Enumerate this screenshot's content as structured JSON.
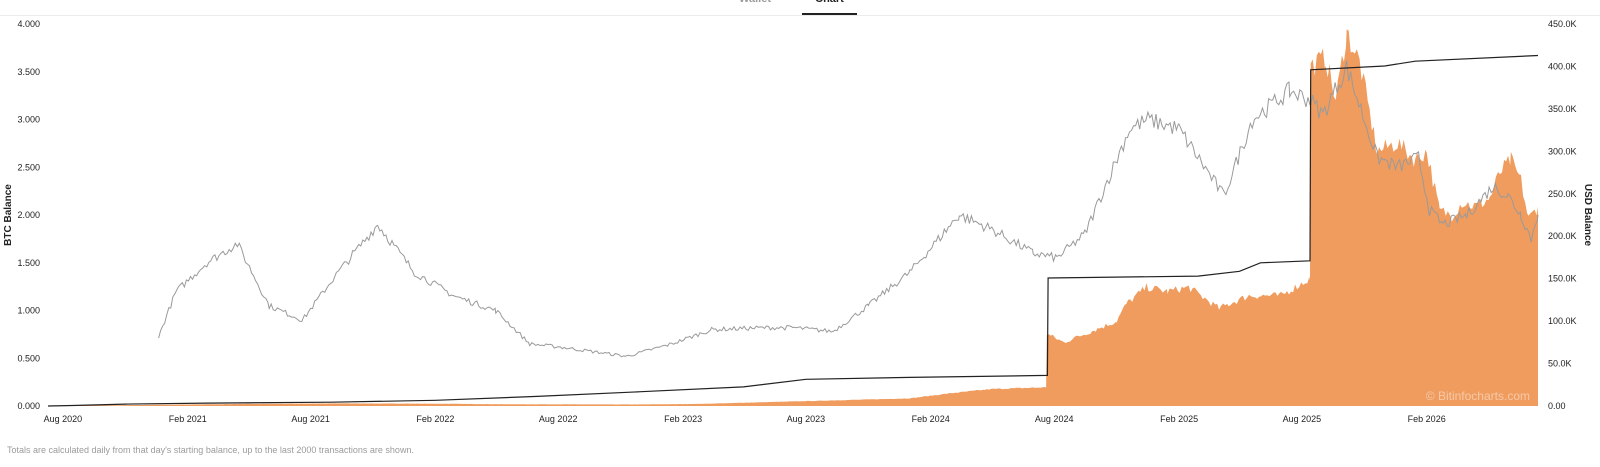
{
  "tabs": [
    {
      "label": "Wallet",
      "active": false
    },
    {
      "label": "Chart",
      "active": true
    }
  ],
  "footnote": "Totals are calculated daily from that day's starting balance, up to the last 2000 transactions are shown.",
  "watermark": "© Bitinfocharts.com",
  "colors": {
    "usd_area": "#ef9c5e",
    "btc_line": "#222222",
    "price_line": "#9a9a9a"
  },
  "chart_data": {
    "type": "area",
    "title": "",
    "x_axis": {
      "type": "date",
      "range": [
        "2020-07-10",
        "2026-07-15"
      ],
      "tick_labels": [
        "Aug 2020",
        "Feb 2021",
        "Aug 2021",
        "Feb 2022",
        "Aug 2022",
        "Feb 2023",
        "Aug 2023",
        "Feb 2024",
        "Aug 2024",
        "Feb 2025",
        "Aug 2025",
        "Feb 2026"
      ],
      "tick_dates": [
        "2020-08-01",
        "2021-02-01",
        "2021-08-01",
        "2022-02-01",
        "2022-08-01",
        "2023-02-01",
        "2023-08-01",
        "2024-02-01",
        "2024-08-01",
        "2025-02-01",
        "2025-08-01",
        "2026-02-01"
      ]
    },
    "y_left": {
      "label": "BTC Balance",
      "range": [
        0,
        4
      ],
      "ticks": [
        0,
        0.5,
        1,
        1.5,
        2,
        2.5,
        3,
        3.5,
        4
      ],
      "tick_labels": [
        "0.000",
        "0.500",
        "1.000",
        "1.500",
        "2.000",
        "2.500",
        "3.000",
        "3.500",
        "4.000"
      ]
    },
    "y_right": {
      "label": "USD Balance",
      "range": [
        0,
        450000
      ],
      "ticks": [
        0,
        50000,
        100000,
        150000,
        200000,
        250000,
        300000,
        350000,
        400000,
        450000
      ],
      "tick_labels": [
        "0.00",
        "50.0K",
        "100.0K",
        "150.0K",
        "200.0K",
        "250.0K",
        "300.0K",
        "350.0K",
        "400.0K",
        "450.0K"
      ]
    },
    "grid": false,
    "legend": "none",
    "series": [
      {
        "kind": "area",
        "axis": "right",
        "color": "#ef9c5e",
        "x": [
          "2020-07-10",
          "2021-01-01",
          "2021-05-01",
          "2021-09-01",
          "2022-01-01",
          "2022-06-01",
          "2022-12-01",
          "2023-03-01",
          "2023-06-01",
          "2023-10-01",
          "2024-01-01",
          "2024-03-01",
          "2024-05-01",
          "2024-07-20",
          "2024-07-21",
          "2024-08-15",
          "2024-10-01",
          "2024-11-01",
          "2024-11-15",
          "2024-12-15",
          "2025-01-15",
          "2025-02-15",
          "2025-04-01",
          "2025-04-15",
          "2025-05-15",
          "2025-07-01",
          "2025-08-13",
          "2025-08-14",
          "2025-09-05",
          "2025-09-20",
          "2025-10-06",
          "2025-10-25",
          "2025-11-20",
          "2025-12-20",
          "2026-01-15",
          "2026-02-01",
          "2026-02-20",
          "2026-03-10",
          "2026-03-25",
          "2026-04-15",
          "2026-05-05",
          "2026-05-20",
          "2026-06-05",
          "2026-06-20",
          "2026-07-01",
          "2026-07-15"
        ],
        "y": [
          200,
          1500,
          2500,
          3000,
          2800,
          2000,
          1800,
          2500,
          4500,
          7000,
          9000,
          15000,
          20000,
          22000,
          85000,
          75000,
          90000,
          100000,
          120000,
          140000,
          135000,
          140000,
          115000,
          120000,
          130000,
          130000,
          150000,
          400000,
          410000,
          360000,
          440000,
          405000,
          300000,
          310000,
          290000,
          300000,
          230000,
          225000,
          240000,
          235000,
          245000,
          275000,
          290000,
          265000,
          220000,
          235000
        ]
      },
      {
        "kind": "line",
        "axis": "left",
        "color": "#222222",
        "x": [
          "2020-07-10",
          "2020-08-15",
          "2020-11-01",
          "2021-03-01",
          "2021-09-01",
          "2022-02-01",
          "2022-07-01",
          "2022-12-01",
          "2023-05-01",
          "2023-08-01",
          "2024-01-01",
          "2024-07-22",
          "2024-07-23",
          "2025-03-01",
          "2025-05-01",
          "2025-06-01",
          "2025-08-13",
          "2025-08-14",
          "2025-12-01",
          "2026-01-15",
          "2026-07-15"
        ],
        "y": [
          0,
          0.005,
          0.02,
          0.03,
          0.04,
          0.06,
          0.1,
          0.15,
          0.2,
          0.28,
          0.3,
          0.32,
          1.34,
          1.36,
          1.41,
          1.5,
          1.52,
          3.52,
          3.56,
          3.61,
          3.67
        ]
      },
      {
        "kind": "line",
        "axis": "left",
        "color": "#9a9a9a",
        "x": [
          "2020-12-20",
          "2021-01-01",
          "2021-01-15",
          "2021-03-01",
          "2021-04-15",
          "2021-06-01",
          "2021-07-20",
          "2021-09-05",
          "2021-11-08",
          "2022-01-01",
          "2022-03-01",
          "2022-05-01",
          "2022-06-20",
          "2022-08-01",
          "2022-11-10",
          "2023-01-15",
          "2023-03-15",
          "2023-06-01",
          "2023-07-15",
          "2023-09-10",
          "2023-11-01",
          "2024-01-01",
          "2024-03-14",
          "2024-05-01",
          "2024-07-01",
          "2024-08-05",
          "2024-09-15",
          "2024-11-20",
          "2024-12-17",
          "2025-02-01",
          "2025-04-08",
          "2025-05-20",
          "2025-07-14",
          "2025-08-14",
          "2025-09-01",
          "2025-10-06",
          "2025-11-20",
          "2025-12-20",
          "2026-01-20",
          "2026-02-05",
          "2026-02-25",
          "2026-04-01",
          "2026-05-10",
          "2026-06-01",
          "2026-06-20",
          "2026-07-05",
          "2026-07-15"
        ],
        "y": [
          0.72,
          0.95,
          1.2,
          1.5,
          1.7,
          1.05,
          0.9,
          1.35,
          1.9,
          1.4,
          1.15,
          1.0,
          0.65,
          0.62,
          0.52,
          0.65,
          0.8,
          0.82,
          0.82,
          0.78,
          1.05,
          1.4,
          2.0,
          1.85,
          1.6,
          1.55,
          1.8,
          2.9,
          3.0,
          2.9,
          2.2,
          3.0,
          3.3,
          3.2,
          3.05,
          3.55,
          2.6,
          2.5,
          2.6,
          2.05,
          1.9,
          2.0,
          2.3,
          2.2,
          2.0,
          1.75,
          2.0
        ]
      }
    ]
  }
}
